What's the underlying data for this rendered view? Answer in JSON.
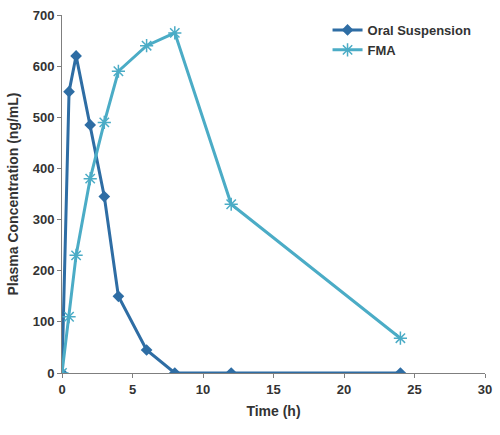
{
  "chart_data": {
    "type": "line",
    "x_label": "Time (h)",
    "y_label": "Plasma Concentration (ng/mL)",
    "x": [
      0,
      0.5,
      1,
      2,
      3,
      4,
      6,
      8,
      12,
      24
    ],
    "series": [
      {
        "name": "Oral Suspension",
        "color": "#2e6da4",
        "marker": "diamond",
        "values": [
          0,
          550,
          620,
          485,
          345,
          150,
          45,
          0,
          0,
          0
        ]
      },
      {
        "name": "FMA",
        "color": "#4bacc6",
        "marker": "asterisk",
        "values": [
          0,
          110,
          230,
          380,
          490,
          590,
          640,
          665,
          330,
          68
        ]
      }
    ],
    "xlim": [
      0,
      30
    ],
    "xticks": [
      0,
      5,
      10,
      15,
      20,
      25,
      30
    ],
    "ylim": [
      0,
      700
    ],
    "yticks": [
      0,
      100,
      200,
      300,
      400,
      500,
      600,
      700
    ],
    "grid": false,
    "legend": "upper right"
  }
}
